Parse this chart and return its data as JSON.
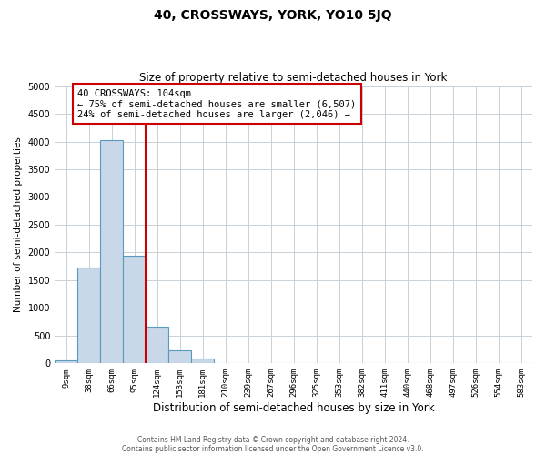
{
  "title": "40, CROSSWAYS, YORK, YO10 5JQ",
  "subtitle": "Size of property relative to semi-detached houses in York",
  "xlabel": "Distribution of semi-detached houses by size in York",
  "ylabel": "Number of semi-detached properties",
  "bin_labels": [
    "9sqm",
    "38sqm",
    "66sqm",
    "95sqm",
    "124sqm",
    "153sqm",
    "181sqm",
    "210sqm",
    "239sqm",
    "267sqm",
    "296sqm",
    "325sqm",
    "353sqm",
    "382sqm",
    "411sqm",
    "440sqm",
    "468sqm",
    "497sqm",
    "526sqm",
    "554sqm",
    "583sqm"
  ],
  "bar_values": [
    50,
    1730,
    4030,
    1940,
    660,
    230,
    85,
    0,
    0,
    0,
    0,
    0,
    0,
    0,
    0,
    0,
    0,
    0,
    0,
    0,
    0
  ],
  "bar_color": "#c8d8e8",
  "bar_edge_color": "#5a9abd",
  "annotation_title": "40 CROSSWAYS: 104sqm",
  "annotation_line1": "← 75% of semi-detached houses are smaller (6,507)",
  "annotation_line2": "24% of semi-detached houses are larger (2,046) →",
  "annotation_box_color": "#ffffff",
  "annotation_box_edge_color": "#cc0000",
  "vline_color": "#cc0000",
  "vline_x_index": 3.5,
  "ylim": [
    0,
    5000
  ],
  "yticks": [
    0,
    500,
    1000,
    1500,
    2000,
    2500,
    3000,
    3500,
    4000,
    4500,
    5000
  ],
  "footer_line1": "Contains HM Land Registry data © Crown copyright and database right 2024.",
  "footer_line2": "Contains public sector information licensed under the Open Government Licence v3.0.",
  "background_color": "#ffffff",
  "grid_color": "#c8d0d8"
}
